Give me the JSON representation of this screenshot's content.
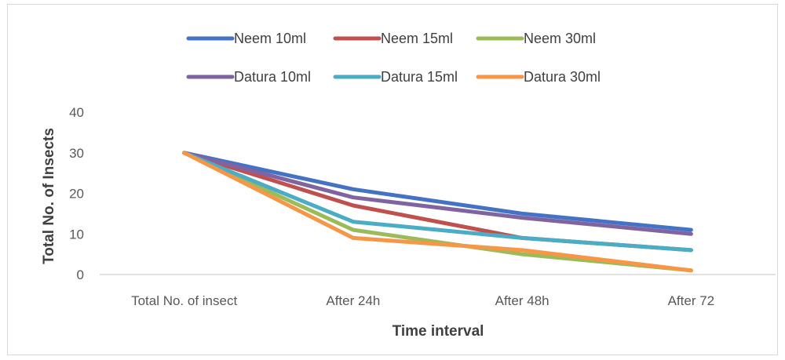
{
  "chart_data": {
    "type": "line",
    "title": "",
    "xlabel": "Time interval",
    "ylabel": "Total No. of Insects",
    "categories": [
      "Total No. of insect",
      "After 24h",
      "After 48h",
      "After 72"
    ],
    "ylim": [
      0,
      40
    ],
    "yticks": [
      0,
      10,
      20,
      30,
      40
    ],
    "grid": false,
    "legend_position": "top",
    "series": [
      {
        "name": "Neem 10ml",
        "color": "#4472c4",
        "values": [
          30,
          21,
          15,
          11
        ]
      },
      {
        "name": "Neem 15ml",
        "color": "#c0504d",
        "values": [
          30,
          17,
          9,
          6
        ]
      },
      {
        "name": "Neem 30ml",
        "color": "#9bbb59",
        "values": [
          30,
          11,
          5,
          1
        ]
      },
      {
        "name": "Datura 10ml",
        "color": "#8064a2",
        "values": [
          30,
          19,
          14,
          10
        ]
      },
      {
        "name": "Datura 15ml",
        "color": "#4bacc6",
        "values": [
          30,
          13,
          9,
          6
        ]
      },
      {
        "name": "Datura 30ml",
        "color": "#f79646",
        "values": [
          30,
          9,
          6,
          1
        ]
      }
    ]
  }
}
